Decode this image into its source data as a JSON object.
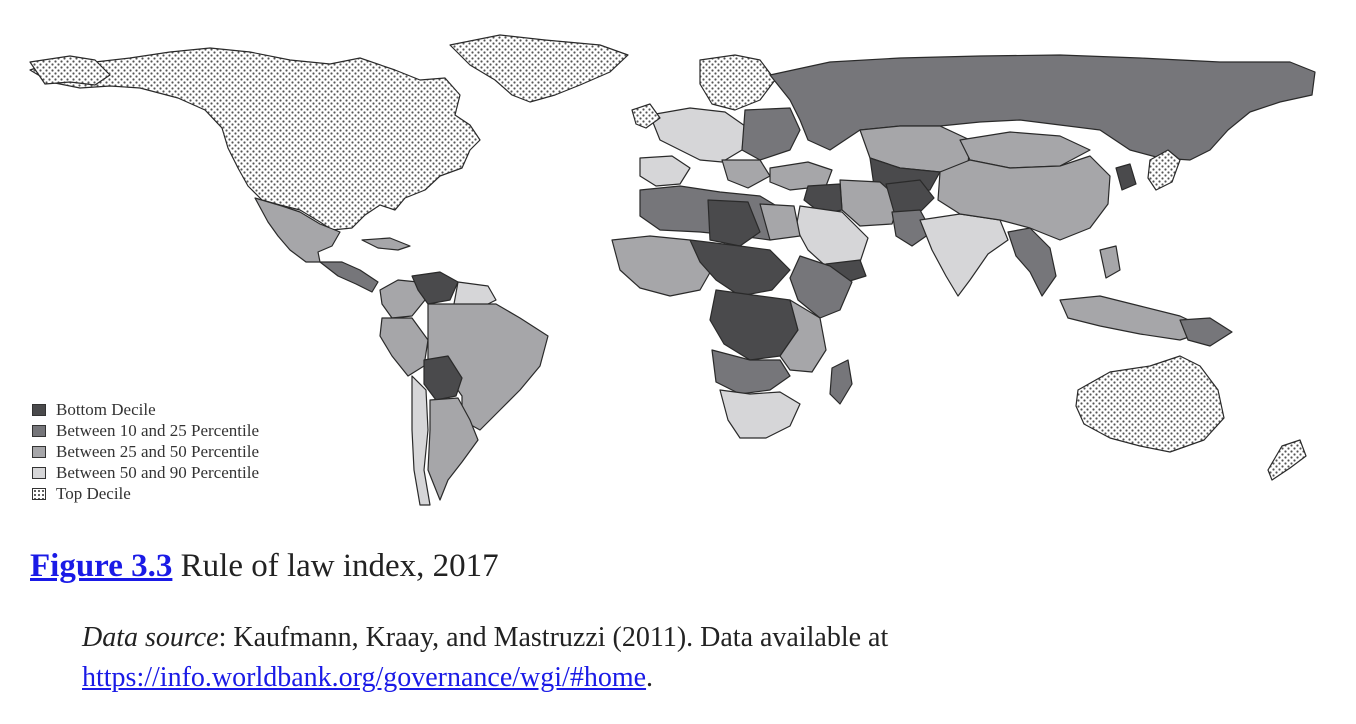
{
  "legend": {
    "items": [
      {
        "label": "Bottom Decile",
        "color": "#4a4a4c",
        "pattern": "solid"
      },
      {
        "label": "Between 10 and 25 Percentile",
        "color": "#76767a",
        "pattern": "solid"
      },
      {
        "label": "Between 25 and 50 Percentile",
        "color": "#a6a6a9",
        "pattern": "solid"
      },
      {
        "label": "Between 50 and 90 Percentile",
        "color": "#d6d6d8",
        "pattern": "solid"
      },
      {
        "label": "Top Decile",
        "color": "#ffffff",
        "pattern": "dots"
      }
    ]
  },
  "caption": {
    "figure_label": "Figure 3.3",
    "title": " Rule of law index, 2017"
  },
  "source": {
    "label": "Data source",
    "text": ": Kaufmann, Kraay, and Mastruzzi (2011). Data available at",
    "url": "https://info.worldbank.org/governance/wgi/#home",
    "trailing": "."
  },
  "colors": {
    "bottom_decile": "#4a4a4c",
    "p10_25": "#76767a",
    "p25_50": "#a6a6a9",
    "p50_90": "#d6d6d8",
    "top_decile_dots": "#555555",
    "border": "#2a2a2a",
    "link": "#1a1ae6"
  }
}
